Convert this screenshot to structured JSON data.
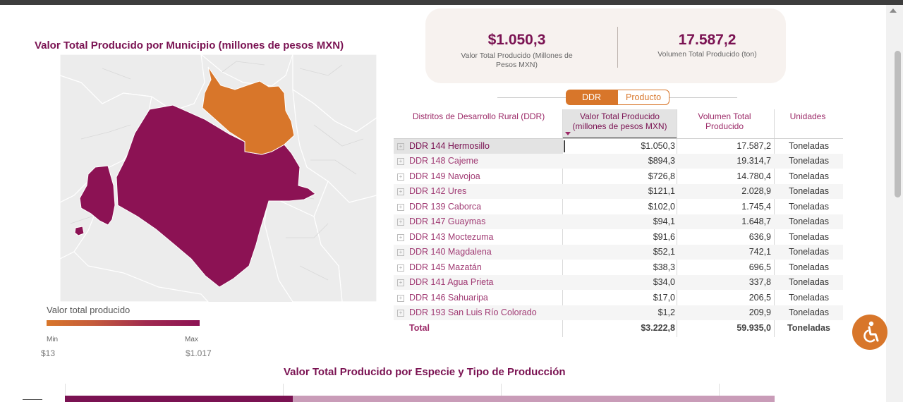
{
  "map": {
    "title": "Valor Total Producido por Municipio (millones de pesos MXN)",
    "colors": {
      "high": "#8c1254",
      "low": "#d8762a",
      "base": "#ececec",
      "border": "#ffffff"
    }
  },
  "legend": {
    "title": "Valor total producido",
    "min_label": "Min",
    "max_label": "Max",
    "min_value": "$13",
    "max_value": "$1.017"
  },
  "kpis": [
    {
      "value": "$1.050,3",
      "label": "Valor Total Producido (Millones de Pesos MXN)"
    },
    {
      "value": "17.587,2",
      "label": "Volumen Total Producido (ton)"
    }
  ],
  "toggle": {
    "options": [
      "DDR",
      "Producto"
    ],
    "selected": "DDR"
  },
  "table": {
    "headers": {
      "ddr": "Distritos de Desarrollo Rural (DDR)",
      "valor": "Valor Total Producido (millones de pesos MXN)",
      "volumen": "Volumen Total Producido",
      "unidades": "Unidades"
    },
    "rows": [
      {
        "ddr": "DDR 144 Hermosillo",
        "valor": "$1.050,3",
        "volumen": "17.587,2",
        "unidades": "Toneladas"
      },
      {
        "ddr": "DDR 148 Cajeme",
        "valor": "$894,3",
        "volumen": "19.314,7",
        "unidades": "Toneladas"
      },
      {
        "ddr": "DDR 149 Navojoa",
        "valor": "$726,8",
        "volumen": "14.780,4",
        "unidades": "Toneladas"
      },
      {
        "ddr": "DDR 142 Ures",
        "valor": "$121,1",
        "volumen": "2.028,9",
        "unidades": "Toneladas"
      },
      {
        "ddr": "DDR 139 Caborca",
        "valor": "$102,0",
        "volumen": "1.745,4",
        "unidades": "Toneladas"
      },
      {
        "ddr": "DDR 147 Guaymas",
        "valor": "$94,1",
        "volumen": "1.648,7",
        "unidades": "Toneladas"
      },
      {
        "ddr": "DDR 143 Moctezuma",
        "valor": "$91,6",
        "volumen": "636,9",
        "unidades": "Toneladas"
      },
      {
        "ddr": "DDR 140 Magdalena",
        "valor": "$52,1",
        "volumen": "742,1",
        "unidades": "Toneladas"
      },
      {
        "ddr": "DDR 145 Mazatán",
        "valor": "$38,3",
        "volumen": "696,5",
        "unidades": "Toneladas"
      },
      {
        "ddr": "DDR 141 Agua Prieta",
        "valor": "$34,0",
        "volumen": "337,8",
        "unidades": "Toneladas"
      },
      {
        "ddr": "DDR 146 Sahuaripa",
        "valor": "$17,0",
        "volumen": "206,5",
        "unidades": "Toneladas"
      },
      {
        "ddr": "DDR 193 San Luis Río Colorado",
        "valor": "$1,2",
        "volumen": "209,9",
        "unidades": "Toneladas"
      }
    ],
    "total": {
      "label": "Total",
      "valor": "$3.222,8",
      "volumen": "59.935,0",
      "unidades": "Toneladas"
    },
    "selected_row": 0
  },
  "bottom_chart": {
    "title": "Valor Total Producido por Especie y Tipo de Producción",
    "colors": {
      "series1": "#7a1252",
      "series2": "#c99cb8"
    }
  },
  "icons": {
    "accessibility": "accessibility-icon",
    "expand": "expand-plus-icon",
    "sort": "sort-desc-icon"
  },
  "accent_color": "#d8762a"
}
